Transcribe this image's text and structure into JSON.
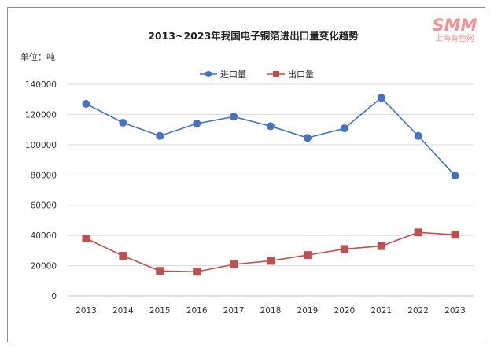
{
  "watermark": {
    "logo": "SMM",
    "text": "上海有色网",
    "color": "#e8383d"
  },
  "chart_data": {
    "type": "line",
    "title": "2013~2023年我国电子铜箔进出口量变化趋势",
    "ylabel": "单位：吨",
    "xlabel": "",
    "categories": [
      "2013",
      "2014",
      "2015",
      "2016",
      "2017",
      "2018",
      "2019",
      "2020",
      "2021",
      "2022",
      "2023"
    ],
    "ylim": [
      0,
      140000
    ],
    "yticks": [
      0,
      20000,
      40000,
      60000,
      80000,
      100000,
      120000,
      140000
    ],
    "ytick_labels": [
      "0",
      "20000",
      "40000",
      "60000",
      "80000",
      "100000",
      "120000",
      "140000"
    ],
    "grid": true,
    "legend_position": "top",
    "series": [
      {
        "name": "进口量",
        "color": "#4472c4",
        "marker": "circle",
        "values": [
          127000,
          114500,
          105800,
          114000,
          118500,
          112200,
          104500,
          110800,
          131000,
          105800,
          79500
        ]
      },
      {
        "name": "出口量",
        "color": "#c0504d",
        "marker": "square",
        "values": [
          38000,
          26500,
          16500,
          16000,
          20800,
          23200,
          27000,
          31000,
          33000,
          42000,
          40500
        ]
      }
    ]
  }
}
